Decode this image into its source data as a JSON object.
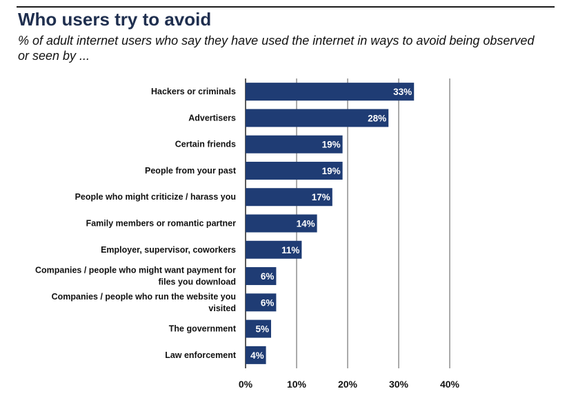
{
  "header": {
    "title": "Who users try to avoid",
    "subtitle": "% of adult internet users who say they have used the internet in ways to avoid being observed or seen by ..."
  },
  "colors": {
    "bar": "#1f3c74",
    "grid": "#555555",
    "axis": "#222222"
  },
  "chart_data": {
    "type": "bar",
    "orientation": "horizontal",
    "title": "Who users try to avoid",
    "subtitle": "% of adult internet users who say they have used the internet in ways to avoid being observed or seen by ...",
    "categories": [
      [
        "Hackers or criminals"
      ],
      [
        "Advertisers"
      ],
      [
        "Certain friends"
      ],
      [
        "People from your past"
      ],
      [
        "People who might criticize / harass you"
      ],
      [
        "Family members or romantic partner"
      ],
      [
        "Employer, supervisor, coworkers"
      ],
      [
        "Companies / people who might want payment for",
        "files you download"
      ],
      [
        "Companies / people who run the website you",
        "visited"
      ],
      [
        "The government"
      ],
      [
        "Law enforcement"
      ]
    ],
    "values": [
      33,
      28,
      19,
      19,
      17,
      14,
      11,
      6,
      6,
      5,
      4
    ],
    "value_labels": [
      "33%",
      "28%",
      "19%",
      "19%",
      "17%",
      "14%",
      "11%",
      "6%",
      "6%",
      "5%",
      "4%"
    ],
    "xlim": [
      0,
      40
    ],
    "xticks": [
      0,
      10,
      20,
      30,
      40
    ],
    "xtick_labels": [
      "0%",
      "10%",
      "20%",
      "30%",
      "40%"
    ],
    "grid": true,
    "legend": "none"
  }
}
